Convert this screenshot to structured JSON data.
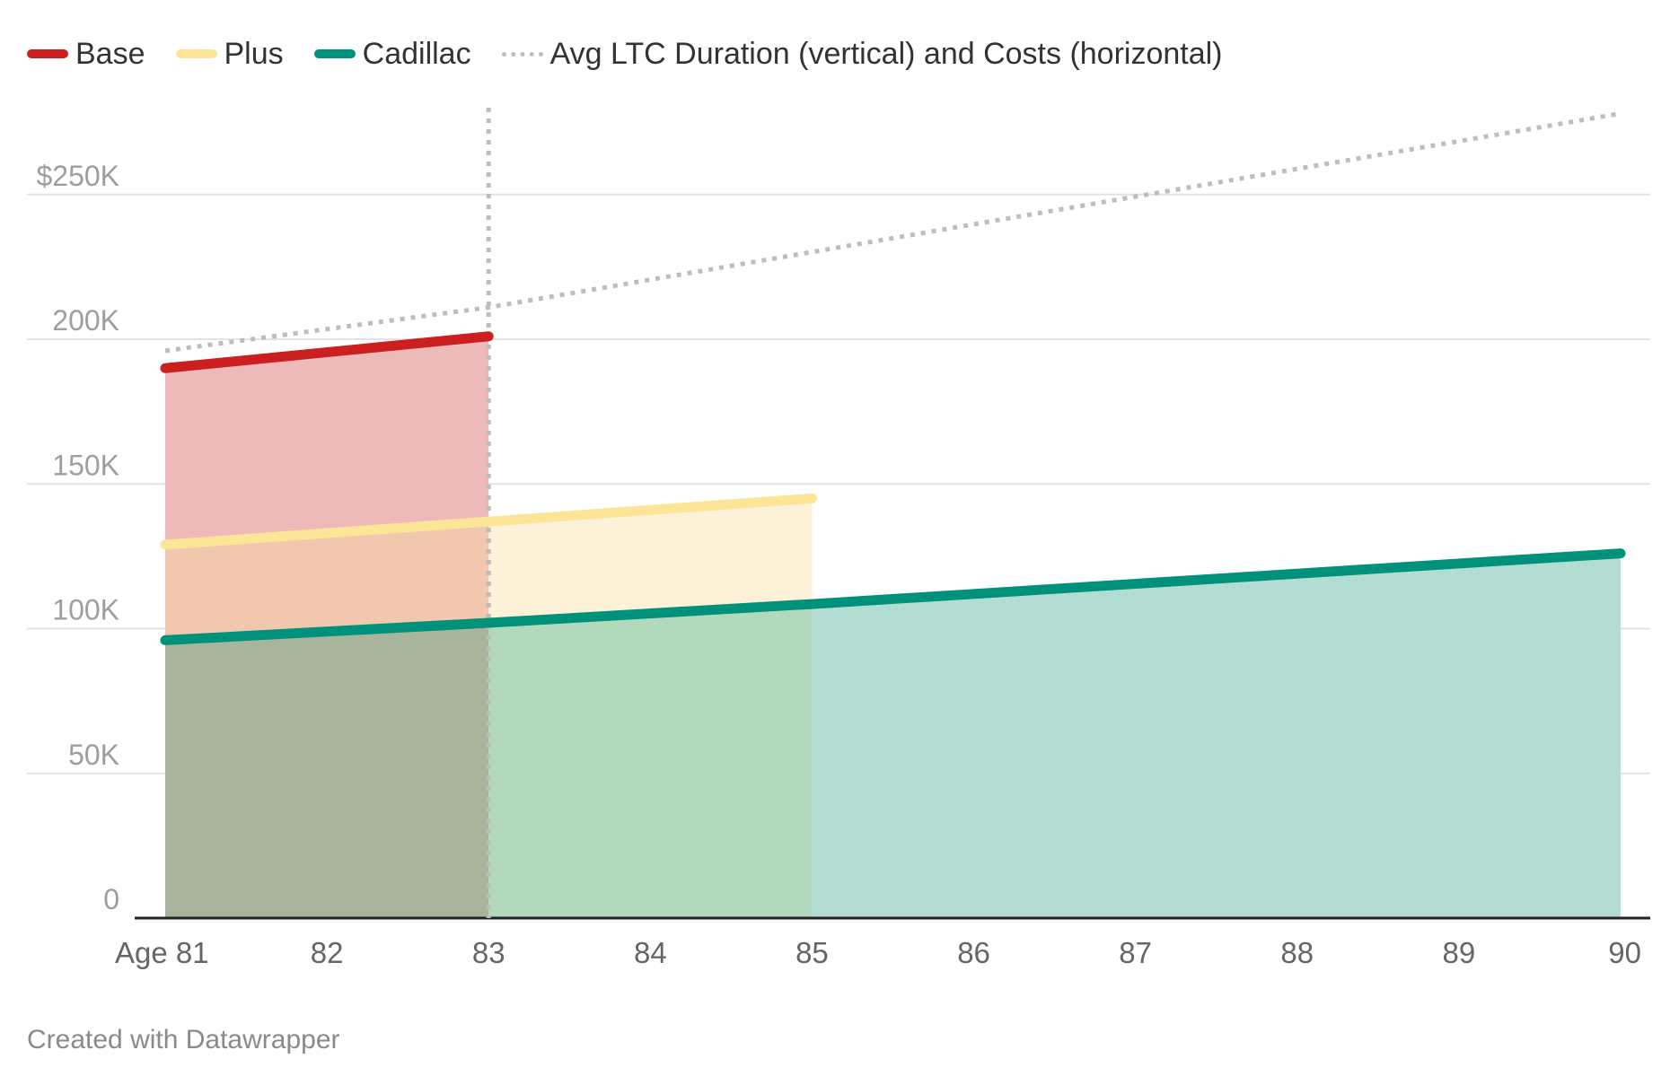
{
  "chart_data": {
    "type": "area",
    "title": "",
    "xlabel": "",
    "ylabel": "",
    "x": [
      "81",
      "82",
      "83",
      "84",
      "85",
      "86",
      "87",
      "88",
      "89",
      "90"
    ],
    "x_tick_labels": [
      "Age 81",
      "82",
      "83",
      "84",
      "85",
      "86",
      "87",
      "88",
      "89",
      "90"
    ],
    "x_range": [
      81,
      90
    ],
    "ylim": [
      0,
      280000
    ],
    "y_ticks": [
      0,
      50000,
      100000,
      150000,
      200000,
      250000
    ],
    "y_tick_labels": [
      "0",
      "50K",
      "100K",
      "150K",
      "200K",
      "$250K"
    ],
    "grid": true,
    "legend_position": "top-left",
    "series": [
      {
        "name": "Base",
        "color": "#cc1f1f",
        "fill": "#eeb9b9",
        "x": [
          81,
          83
        ],
        "values": [
          190000,
          201000
        ]
      },
      {
        "name": "Plus",
        "color": "#fde597",
        "fill": "#fdf1d8",
        "x": [
          81,
          83,
          85
        ],
        "values": [
          129000,
          137000,
          145000
        ]
      },
      {
        "name": "Cadillac",
        "color": "#00917a",
        "fill": "#b3ddd3",
        "x": [
          81,
          83,
          85,
          90
        ],
        "values": [
          96000,
          102000,
          108500,
          126000
        ]
      },
      {
        "name": "Avg LTC Duration (vertical) and Costs (horizontal)",
        "color": "#bdbdbd",
        "style": "dotted",
        "x": [
          81,
          83,
          90
        ],
        "values": [
          196000,
          211000,
          278000
        ],
        "vertical_at": 83
      }
    ],
    "overlap_fills": {
      "base_plus": "#f1c8ae",
      "plus_cadillac": "#b3d9bd",
      "all_three": "#a8b59c"
    },
    "footer": "Created with Datawrapper"
  }
}
